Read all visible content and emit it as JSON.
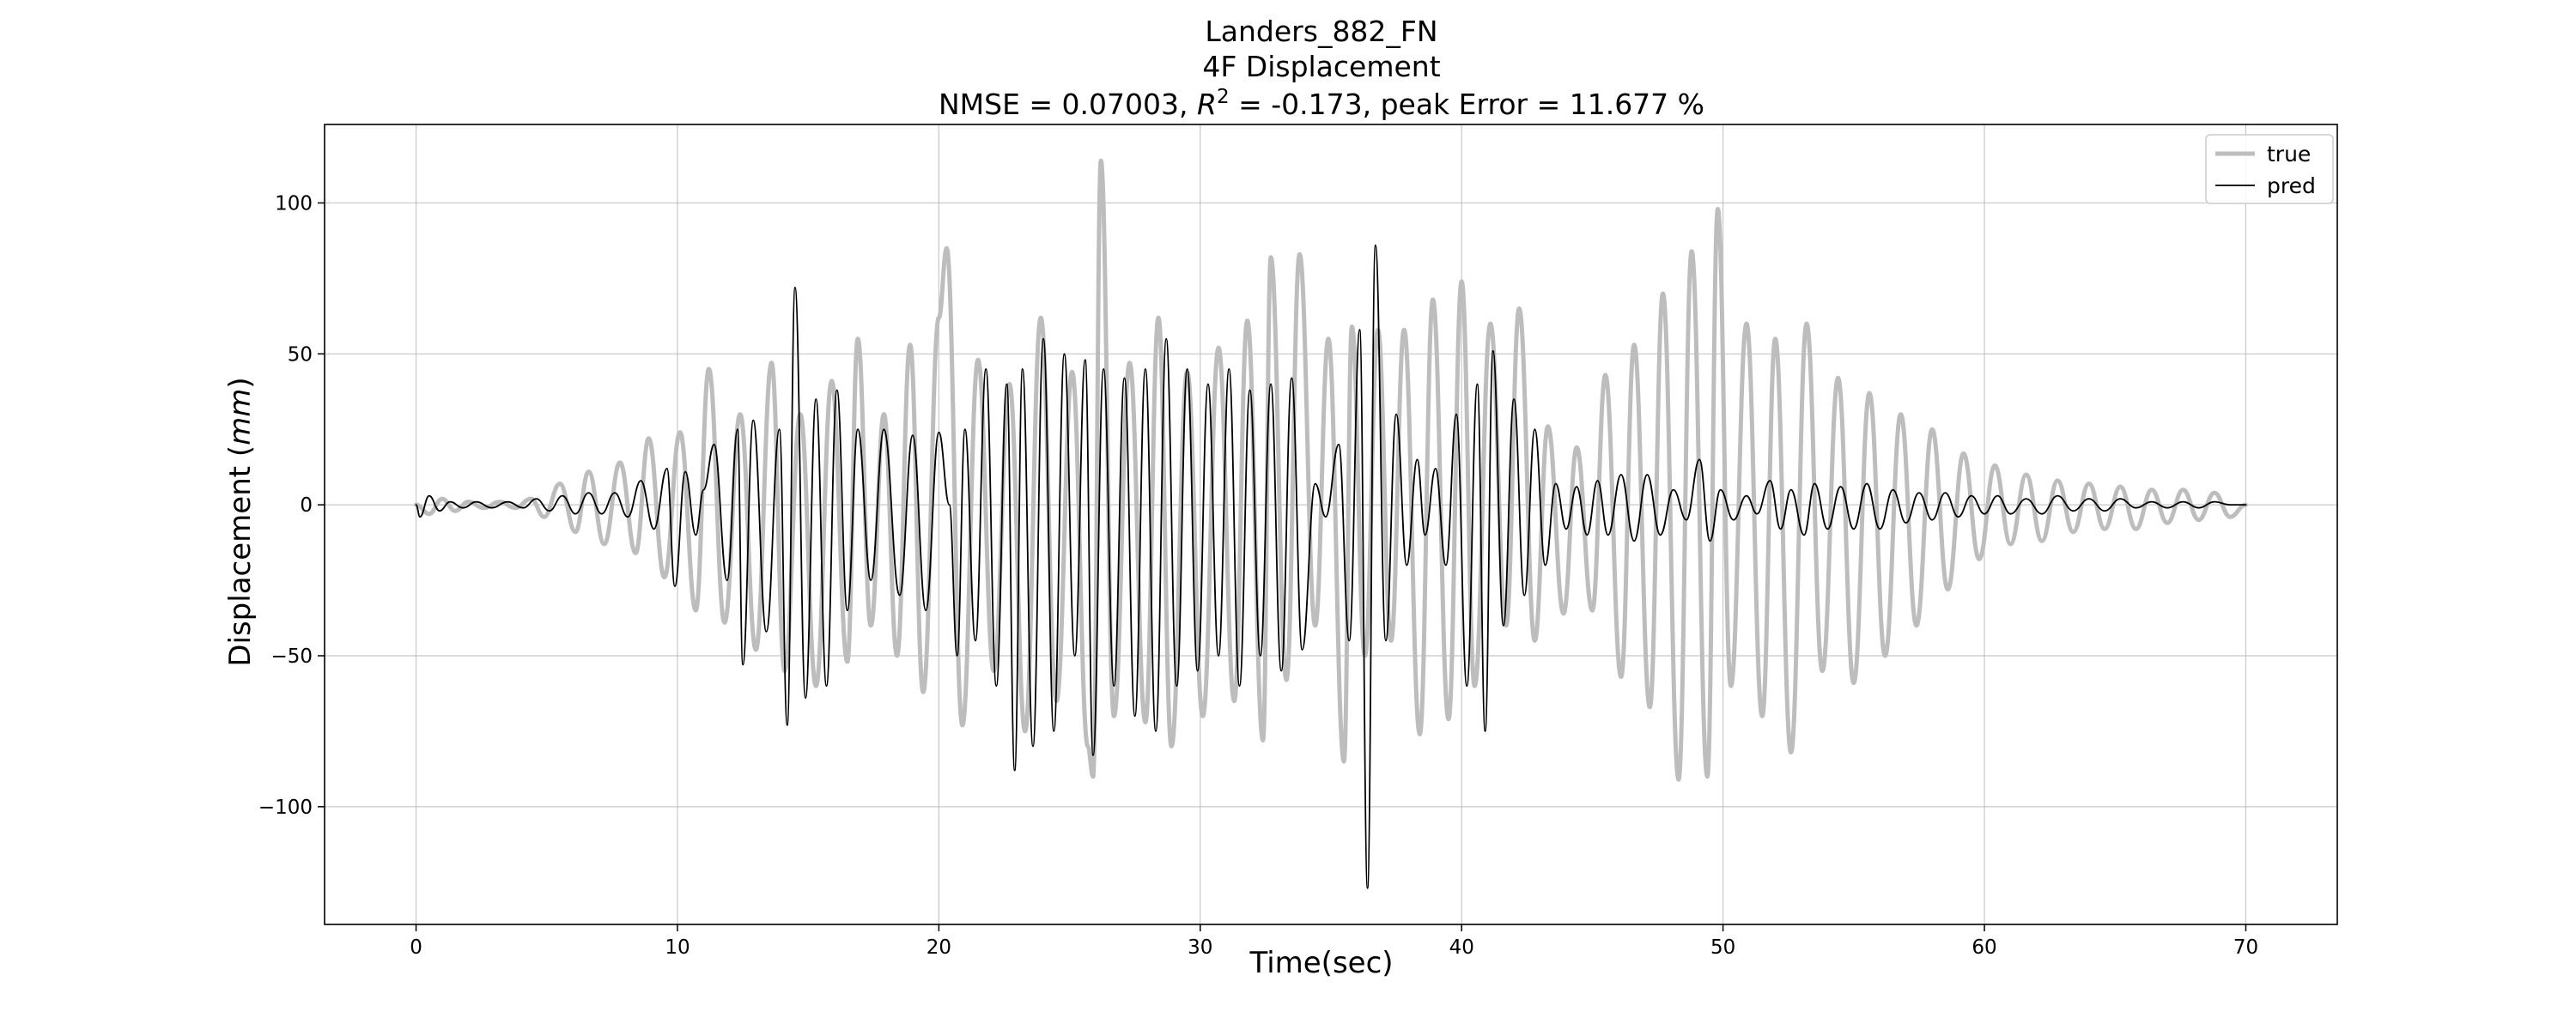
{
  "chart_data": {
    "type": "line",
    "title_lines": [
      "Landers_882_FN",
      "4F Displacement"
    ],
    "metrics": {
      "nmse_prefix": "NMSE = 0.07003, ",
      "r2_symbol": "R",
      "r2_exponent": "2",
      "r2_suffix": " = -0.173, peak Error = 11.677 %"
    },
    "xlabel": "Time(sec)",
    "ylabel_prefix": "Displacement (",
    "ylabel_unit": "mm",
    "ylabel_suffix": ")",
    "xlim": [
      -3.5,
      73.5
    ],
    "ylim": [
      -139,
      126
    ],
    "xticks": [
      0,
      10,
      20,
      30,
      40,
      50,
      60,
      70
    ],
    "yticks": [
      -100,
      -50,
      0,
      50,
      100
    ],
    "ytick_labels": [
      "−100",
      "−50",
      "0",
      "50",
      "100"
    ],
    "grid": true,
    "legend_position": "top-right",
    "series": [
      {
        "name": "true",
        "color": "#bdbdbd",
        "style": "thick",
        "extrema": [
          [
            0,
            0
          ],
          [
            0.5,
            -3
          ],
          [
            1,
            2
          ],
          [
            1.5,
            -2
          ],
          [
            2,
            1
          ],
          [
            2.6,
            -1
          ],
          [
            3.2,
            1
          ],
          [
            3.8,
            -1
          ],
          [
            4.4,
            2
          ],
          [
            4.9,
            -4
          ],
          [
            5.5,
            7
          ],
          [
            6.1,
            -9
          ],
          [
            6.6,
            11
          ],
          [
            7.2,
            -13
          ],
          [
            7.8,
            14
          ],
          [
            8.4,
            -16
          ],
          [
            8.9,
            22
          ],
          [
            9.5,
            -24
          ],
          [
            10.1,
            24
          ],
          [
            10.7,
            -35
          ],
          [
            11.2,
            45
          ],
          [
            11.8,
            -39
          ],
          [
            12.4,
            30
          ],
          [
            13.0,
            -48
          ],
          [
            13.6,
            47
          ],
          [
            14.1,
            -55
          ],
          [
            14.7,
            30
          ],
          [
            15.3,
            -60
          ],
          [
            15.9,
            41
          ],
          [
            16.5,
            -52
          ],
          [
            16.9,
            55
          ],
          [
            17.4,
            -40
          ],
          [
            17.9,
            30
          ],
          [
            18.4,
            -50
          ],
          [
            18.9,
            53
          ],
          [
            19.4,
            -62
          ],
          [
            20.0,
            62
          ],
          [
            20.3,
            85
          ],
          [
            20.9,
            -73
          ],
          [
            21.5,
            48
          ],
          [
            22.1,
            -55
          ],
          [
            22.7,
            40
          ],
          [
            23.3,
            -75
          ],
          [
            23.9,
            62
          ],
          [
            24.5,
            -65
          ],
          [
            25.1,
            44
          ],
          [
            25.7,
            -80
          ],
          [
            25.9,
            -90
          ],
          [
            26.2,
            114
          ],
          [
            26.7,
            -70
          ],
          [
            27.3,
            47
          ],
          [
            27.9,
            -72
          ],
          [
            28.4,
            62
          ],
          [
            28.9,
            -80
          ],
          [
            29.5,
            44
          ],
          [
            30.1,
            -70
          ],
          [
            30.7,
            52
          ],
          [
            31.3,
            -65
          ],
          [
            31.8,
            61
          ],
          [
            32.4,
            -78
          ],
          [
            32.7,
            82
          ],
          [
            33.3,
            -58
          ],
          [
            33.8,
            83
          ],
          [
            34.4,
            -40
          ],
          [
            34.9,
            55
          ],
          [
            35.5,
            -85
          ],
          [
            35.8,
            59
          ],
          [
            36.3,
            -50
          ],
          [
            36.8,
            58
          ],
          [
            37.3,
            -45
          ],
          [
            37.8,
            58
          ],
          [
            38.4,
            -76
          ],
          [
            38.9,
            68
          ],
          [
            39.5,
            -71
          ],
          [
            40.0,
            74
          ],
          [
            40.5,
            -60
          ],
          [
            41.1,
            60
          ],
          [
            41.7,
            -40
          ],
          [
            42.2,
            65
          ],
          [
            42.8,
            -45
          ],
          [
            43.3,
            26
          ],
          [
            43.9,
            -36
          ],
          [
            44.4,
            19
          ],
          [
            45.0,
            -35
          ],
          [
            45.5,
            43
          ],
          [
            46.1,
            -57
          ],
          [
            46.6,
            53
          ],
          [
            47.2,
            -67
          ],
          [
            47.7,
            70
          ],
          [
            48.3,
            -91
          ],
          [
            48.8,
            84
          ],
          [
            49.4,
            -90
          ],
          [
            49.8,
            98
          ],
          [
            50.3,
            -60
          ],
          [
            50.9,
            60
          ],
          [
            51.5,
            -70
          ],
          [
            52.0,
            55
          ],
          [
            52.6,
            -82
          ],
          [
            53.2,
            60
          ],
          [
            53.8,
            -55
          ],
          [
            54.4,
            42
          ],
          [
            55.0,
            -59
          ],
          [
            55.6,
            37
          ],
          [
            56.2,
            -50
          ],
          [
            56.8,
            30
          ],
          [
            57.4,
            -40
          ],
          [
            58.0,
            25
          ],
          [
            58.6,
            -28
          ],
          [
            59.2,
            17
          ],
          [
            59.8,
            -18
          ],
          [
            60.4,
            13
          ],
          [
            61.0,
            -13
          ],
          [
            61.6,
            10
          ],
          [
            62.2,
            -12
          ],
          [
            62.8,
            8
          ],
          [
            63.4,
            -9
          ],
          [
            64.0,
            7
          ],
          [
            64.6,
            -8
          ],
          [
            65.2,
            6
          ],
          [
            65.8,
            -8
          ],
          [
            66.4,
            5
          ],
          [
            67.0,
            -6
          ],
          [
            67.6,
            5
          ],
          [
            68.2,
            -5
          ],
          [
            68.8,
            4
          ],
          [
            69.4,
            -4
          ],
          [
            70,
            0
          ]
        ]
      },
      {
        "name": "pred",
        "color": "#000000",
        "style": "thin",
        "extrema": [
          [
            0,
            0
          ],
          [
            0.15,
            -4
          ],
          [
            0.5,
            3
          ],
          [
            0.9,
            -2
          ],
          [
            1.3,
            1
          ],
          [
            1.8,
            -1
          ],
          [
            2.3,
            1
          ],
          [
            2.9,
            -1
          ],
          [
            3.5,
            1
          ],
          [
            4.1,
            -1
          ],
          [
            4.6,
            2
          ],
          [
            5.1,
            -2
          ],
          [
            5.6,
            3
          ],
          [
            6.1,
            -3
          ],
          [
            6.6,
            4
          ],
          [
            7.1,
            -3
          ],
          [
            7.6,
            4
          ],
          [
            8.1,
            -4
          ],
          [
            8.6,
            8
          ],
          [
            9.1,
            -8
          ],
          [
            9.6,
            12
          ],
          [
            9.9,
            -27
          ],
          [
            10.3,
            11
          ],
          [
            10.7,
            -10
          ],
          [
            11.0,
            5
          ],
          [
            11.4,
            20
          ],
          [
            11.9,
            -25
          ],
          [
            12.3,
            25
          ],
          [
            12.5,
            -53
          ],
          [
            12.9,
            28
          ],
          [
            13.4,
            -42
          ],
          [
            13.9,
            25
          ],
          [
            14.2,
            -73
          ],
          [
            14.5,
            72
          ],
          [
            14.9,
            -64
          ],
          [
            15.3,
            35
          ],
          [
            15.7,
            -60
          ],
          [
            16.1,
            38
          ],
          [
            16.5,
            -35
          ],
          [
            16.9,
            25
          ],
          [
            17.4,
            -25
          ],
          [
            17.9,
            25
          ],
          [
            18.5,
            -30
          ],
          [
            19.0,
            23
          ],
          [
            19.5,
            -35
          ],
          [
            20.0,
            24
          ],
          [
            20.4,
            0
          ],
          [
            20.7,
            -50
          ],
          [
            21.0,
            25
          ],
          [
            21.4,
            -45
          ],
          [
            21.8,
            45
          ],
          [
            22.2,
            -60
          ],
          [
            22.6,
            40
          ],
          [
            22.9,
            -88
          ],
          [
            23.2,
            45
          ],
          [
            23.6,
            -80
          ],
          [
            24.0,
            55
          ],
          [
            24.4,
            -75
          ],
          [
            24.8,
            50
          ],
          [
            25.2,
            -50
          ],
          [
            25.6,
            48
          ],
          [
            25.9,
            -83
          ],
          [
            26.3,
            45
          ],
          [
            26.7,
            -60
          ],
          [
            27.1,
            42
          ],
          [
            27.5,
            -70
          ],
          [
            27.9,
            45
          ],
          [
            28.3,
            -75
          ],
          [
            28.7,
            55
          ],
          [
            29.1,
            -60
          ],
          [
            29.5,
            45
          ],
          [
            29.9,
            -55
          ],
          [
            30.3,
            40
          ],
          [
            30.7,
            -50
          ],
          [
            31.1,
            45
          ],
          [
            31.5,
            -60
          ],
          [
            31.9,
            38
          ],
          [
            32.3,
            -50
          ],
          [
            32.7,
            40
          ],
          [
            33.1,
            -55
          ],
          [
            33.5,
            42
          ],
          [
            33.9,
            -48
          ],
          [
            34.4,
            7
          ],
          [
            34.8,
            -4
          ],
          [
            35.3,
            20
          ],
          [
            35.7,
            -45
          ],
          [
            36.1,
            58
          ],
          [
            36.4,
            -127
          ],
          [
            36.7,
            86
          ],
          [
            37.1,
            -45
          ],
          [
            37.5,
            30
          ],
          [
            37.9,
            -20
          ],
          [
            38.3,
            15
          ],
          [
            38.6,
            -10
          ],
          [
            39.0,
            12
          ],
          [
            39.4,
            -20
          ],
          [
            39.8,
            30
          ],
          [
            40.2,
            -60
          ],
          [
            40.6,
            40
          ],
          [
            40.9,
            -75
          ],
          [
            41.2,
            51
          ],
          [
            41.6,
            -40
          ],
          [
            42.0,
            35
          ],
          [
            42.4,
            -30
          ],
          [
            42.8,
            25
          ],
          [
            43.2,
            -20
          ],
          [
            43.6,
            7
          ],
          [
            44.0,
            -8
          ],
          [
            44.4,
            6
          ],
          [
            44.8,
            -10
          ],
          [
            45.2,
            8
          ],
          [
            45.6,
            -10
          ],
          [
            46.1,
            10
          ],
          [
            46.6,
            -12
          ],
          [
            47.1,
            10
          ],
          [
            47.6,
            -10
          ],
          [
            48.1,
            5
          ],
          [
            48.6,
            -5
          ],
          [
            49.1,
            15
          ],
          [
            49.5,
            -12
          ],
          [
            49.9,
            5
          ],
          [
            50.4,
            -5
          ],
          [
            50.9,
            3
          ],
          [
            51.3,
            -3
          ],
          [
            51.8,
            8
          ],
          [
            52.2,
            -8
          ],
          [
            52.6,
            5
          ],
          [
            53.1,
            -10
          ],
          [
            53.5,
            7
          ],
          [
            54.0,
            -8
          ],
          [
            54.5,
            6
          ],
          [
            55.0,
            -8
          ],
          [
            55.5,
            7
          ],
          [
            56.0,
            -8
          ],
          [
            56.5,
            5
          ],
          [
            57.0,
            -6
          ],
          [
            57.5,
            4
          ],
          [
            58.0,
            -5
          ],
          [
            58.5,
            4
          ],
          [
            59.0,
            -4
          ],
          [
            59.5,
            3
          ],
          [
            60.0,
            -3
          ],
          [
            60.5,
            3
          ],
          [
            61.0,
            -3
          ],
          [
            61.6,
            2
          ],
          [
            62.2,
            -3
          ],
          [
            62.8,
            3
          ],
          [
            63.4,
            -2
          ],
          [
            64.0,
            2
          ],
          [
            64.6,
            -2
          ],
          [
            65.2,
            2
          ],
          [
            65.8,
            -1
          ],
          [
            66.4,
            1
          ],
          [
            67.0,
            -1
          ],
          [
            67.6,
            1
          ],
          [
            68.2,
            -1
          ],
          [
            68.8,
            1
          ],
          [
            69.4,
            0
          ],
          [
            70,
            0
          ]
        ]
      }
    ]
  }
}
